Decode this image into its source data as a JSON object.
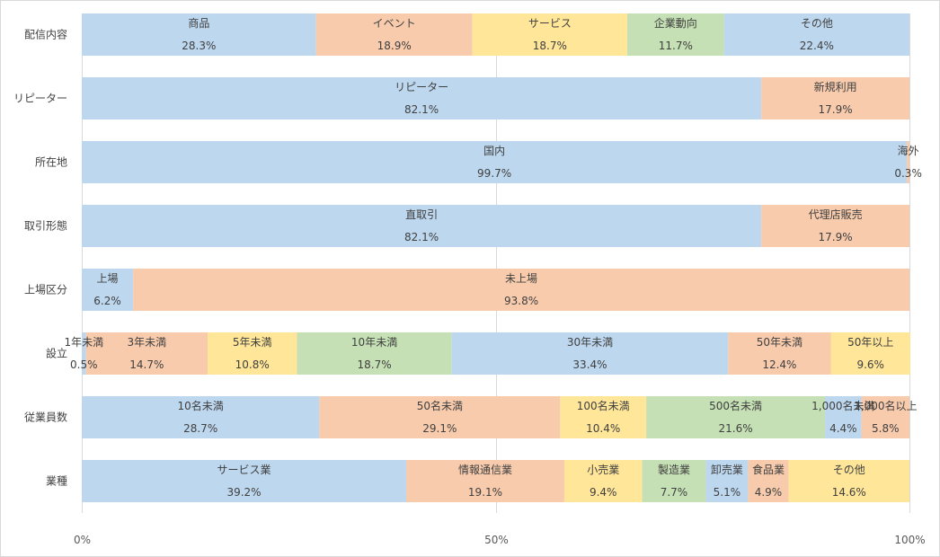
{
  "chart_data": {
    "type": "bar",
    "orientation": "horizontal",
    "stacked": "percent",
    "xlim": [
      0,
      100
    ],
    "x_ticks": [
      "0%",
      "50%",
      "100%"
    ],
    "grid": true,
    "legend": "none",
    "palette": [
      "#bdd7ee",
      "#f8cbad",
      "#ffe699",
      "#c5e0b4"
    ],
    "rows": [
      {
        "category": "配信内容",
        "segments": [
          {
            "label": "商品",
            "value": 28.3,
            "display": "28.3%",
            "color": "#bdd7ee"
          },
          {
            "label": "イベント",
            "value": 18.9,
            "display": "18.9%",
            "color": "#f8cbad"
          },
          {
            "label": "サービス",
            "value": 18.7,
            "display": "18.7%",
            "color": "#ffe699"
          },
          {
            "label": "企業動向",
            "value": 11.7,
            "display": "11.7%",
            "color": "#c5e0b4"
          },
          {
            "label": "その他",
            "value": 22.4,
            "display": "22.4%",
            "color": "#bdd7ee"
          }
        ]
      },
      {
        "category": "リピーター",
        "segments": [
          {
            "label": "リピーター",
            "value": 82.1,
            "display": "82.1%",
            "color": "#bdd7ee"
          },
          {
            "label": "新規利用",
            "value": 17.9,
            "display": "17.9%",
            "color": "#f8cbad"
          }
        ]
      },
      {
        "category": "所在地",
        "segments": [
          {
            "label": "国内",
            "value": 99.7,
            "display": "99.7%",
            "color": "#bdd7ee"
          },
          {
            "label": "海外",
            "value": 0.3,
            "display": "0.3%",
            "color": "#f8cbad"
          }
        ]
      },
      {
        "category": "取引形態",
        "segments": [
          {
            "label": "直取引",
            "value": 82.1,
            "display": "82.1%",
            "color": "#bdd7ee"
          },
          {
            "label": "代理店販売",
            "value": 17.9,
            "display": "17.9%",
            "color": "#f8cbad"
          }
        ]
      },
      {
        "category": "上場区分",
        "segments": [
          {
            "label": "上場",
            "value": 6.2,
            "display": "6.2%",
            "color": "#bdd7ee"
          },
          {
            "label": "未上場",
            "value": 93.8,
            "display": "93.8%",
            "color": "#f8cbad"
          }
        ]
      },
      {
        "category": "設立",
        "segments": [
          {
            "label": "1年未満",
            "value": 0.5,
            "display": "0.5%",
            "color": "#bdd7ee"
          },
          {
            "label": "3年未満",
            "value": 14.7,
            "display": "14.7%",
            "color": "#f8cbad"
          },
          {
            "label": "5年未満",
            "value": 10.8,
            "display": "10.8%",
            "color": "#ffe699"
          },
          {
            "label": "10年未満",
            "value": 18.7,
            "display": "18.7%",
            "color": "#c5e0b4"
          },
          {
            "label": "30年未満",
            "value": 33.4,
            "display": "33.4%",
            "color": "#bdd7ee"
          },
          {
            "label": "50年未満",
            "value": 12.4,
            "display": "12.4%",
            "color": "#f8cbad"
          },
          {
            "label": "50年以上",
            "value": 9.6,
            "display": "9.6%",
            "color": "#ffe699"
          }
        ]
      },
      {
        "category": "従業員数",
        "segments": [
          {
            "label": "10名未満",
            "value": 28.7,
            "display": "28.7%",
            "color": "#bdd7ee"
          },
          {
            "label": "50名未満",
            "value": 29.1,
            "display": "29.1%",
            "color": "#f8cbad"
          },
          {
            "label": "100名未満",
            "value": 10.4,
            "display": "10.4%",
            "color": "#ffe699"
          },
          {
            "label": "500名未満",
            "value": 21.6,
            "display": "21.6%",
            "color": "#c5e0b4"
          },
          {
            "label": "1,000名未満",
            "value": 4.4,
            "display": "4.4%",
            "color": "#bdd7ee"
          },
          {
            "label": "1,000名以上",
            "value": 5.8,
            "display": "5.8%",
            "color": "#f8cbad"
          }
        ]
      },
      {
        "category": "業種",
        "segments": [
          {
            "label": "サービス業",
            "value": 39.2,
            "display": "39.2%",
            "color": "#bdd7ee"
          },
          {
            "label": "情報通信業",
            "value": 19.1,
            "display": "19.1%",
            "color": "#f8cbad"
          },
          {
            "label": "小売業",
            "value": 9.4,
            "display": "9.4%",
            "color": "#ffe699"
          },
          {
            "label": "製造業",
            "value": 7.7,
            "display": "7.7%",
            "color": "#c5e0b4"
          },
          {
            "label": "卸売業",
            "value": 5.1,
            "display": "5.1%",
            "color": "#bdd7ee"
          },
          {
            "label": "食品業",
            "value": 4.9,
            "display": "4.9%",
            "color": "#f8cbad"
          },
          {
            "label": "その他",
            "value": 14.6,
            "display": "14.6%",
            "color": "#ffe699"
          }
        ]
      }
    ]
  }
}
